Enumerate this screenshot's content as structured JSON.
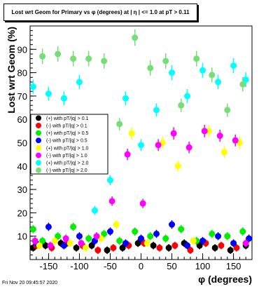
{
  "title": "Lost wrt Geom for Primary vs φ (degrees) at | η | <= 1.0 at pT > 0.11",
  "timestamp": "Fri Nov 20 09:45:57 2020",
  "chart_data": {
    "type": "scatter",
    "title": "Lost wrt Geom for Primary vs φ (degrees) at | η | <= 1.0 at pT > 0.11",
    "xlabel": "φ (degrees)",
    "ylabel": "Lost wrt Geom (%)",
    "xlim": [
      -180,
      180
    ],
    "ylim": [
      0,
      100
    ],
    "xticks": [
      -150,
      -100,
      -50,
      0,
      50,
      100,
      150
    ],
    "yticks": [
      10,
      20,
      30,
      40,
      50,
      60,
      70,
      80,
      90
    ],
    "grid": false,
    "legend_position": "left-middle",
    "series": [
      {
        "name": "(+) with pT/|q| > 0.1",
        "color": "#000000",
        "x": [
          -175,
          -155,
          -130,
          -105,
          -80,
          -55,
          -30,
          -5,
          20,
          45,
          70,
          95,
          120,
          145,
          170
        ],
        "y": [
          5,
          6,
          7,
          5,
          6,
          4,
          5,
          7,
          6,
          5,
          7,
          6,
          5,
          4,
          6
        ]
      },
      {
        "name": "(-) with pT/|q| > 0.1",
        "color": "#ff0000",
        "x": [
          -170,
          -145,
          -120,
          -95,
          -70,
          -45,
          -20,
          5,
          30,
          55,
          80,
          105,
          130,
          155
        ],
        "y": [
          6,
          5,
          7,
          6,
          4,
          5,
          6,
          7,
          5,
          6,
          4,
          7,
          6,
          5
        ]
      },
      {
        "name": "(+) with pT/|q| > 0.5",
        "color": "#00ee00",
        "x": [
          -175,
          -160,
          -135,
          -110,
          -85,
          -60,
          -35,
          -10,
          15,
          40,
          65,
          90,
          115,
          140,
          165
        ],
        "y": [
          13,
          8,
          10,
          14,
          9,
          11,
          8,
          12,
          10,
          9,
          13,
          8,
          11,
          10,
          12
        ]
      },
      {
        "name": "(-) with pT/|q| > 0.5",
        "color": "#0000ff",
        "x": [
          -170,
          -150,
          -125,
          -100,
          -75,
          -50,
          -25,
          0,
          25,
          50,
          75,
          100,
          125,
          150,
          175
        ],
        "y": [
          7,
          14,
          6,
          10,
          8,
          12,
          7,
          9,
          11,
          15,
          6,
          8,
          10,
          7,
          9
        ]
      },
      {
        "name": "(+) with pT/|q| > 1.0",
        "color": "#ffff00",
        "x": [
          -165,
          -140,
          -115,
          -90,
          -65,
          -40,
          -15,
          10,
          35,
          60,
          85,
          110,
          135,
          160
        ],
        "y": [
          6,
          8,
          7,
          5,
          9,
          15,
          54,
          7,
          50,
          40,
          8,
          55,
          46,
          50
        ]
      },
      {
        "name": "(-) with pT/|q| > 1.0",
        "color": "#ff00ff",
        "x": [
          -172,
          -147,
          -122,
          -97,
          -72,
          -47,
          -22,
          3,
          28,
          53,
          78,
          103,
          128,
          153,
          170
        ],
        "y": [
          8,
          6,
          9,
          7,
          10,
          25,
          45,
          24,
          49,
          54,
          48,
          55,
          53,
          51,
          7
        ]
      },
      {
        "name": "(+) with pT/|q| > 2.0",
        "color": "#00ffff",
        "x": [
          -175,
          -150,
          -125,
          -100,
          -75,
          -50,
          -25,
          0,
          25,
          50,
          75,
          100,
          125,
          150,
          170
        ],
        "y": [
          74,
          71,
          69,
          76,
          21,
          34,
          69,
          49,
          64,
          80,
          70,
          81,
          76,
          83,
          77
        ]
      },
      {
        "name": "(-) with pT/|q| > 2.0",
        "color": "#77dd77",
        "x": [
          -160,
          -135,
          -110,
          -85,
          -60,
          -35,
          -10,
          15,
          40,
          65,
          90,
          115,
          140,
          165
        ],
        "y": [
          87,
          88,
          86,
          86,
          85,
          58,
          95,
          82,
          85,
          66,
          86,
          79,
          64,
          75
        ]
      }
    ]
  }
}
